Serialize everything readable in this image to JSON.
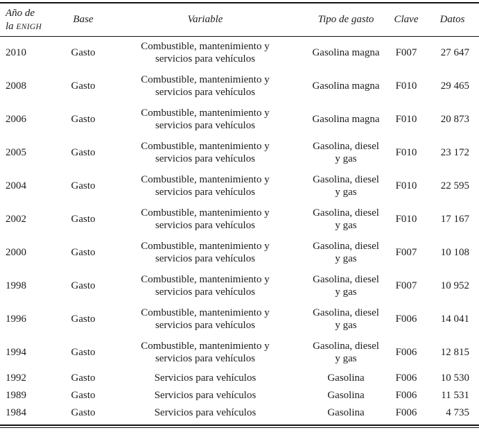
{
  "colors": {
    "text": "#1b1b1b",
    "rule": "#111111",
    "background": "#ffffff"
  },
  "table": {
    "header": {
      "year_line1": "Año de",
      "year_line2_prefix": "la ",
      "year_acronym": "ENIGH",
      "base": "Base",
      "variable": "Variable",
      "tipo": "Tipo de gasto",
      "clave": "Clave",
      "datos": "Datos"
    },
    "rows": [
      {
        "year": "2010",
        "base": "Gasto",
        "variable": "Combustible, mantenimiento y\nservicios para vehículos",
        "tipo": "Gasolina magna",
        "clave": "F007",
        "datos": "27 647"
      },
      {
        "year": "2008",
        "base": "Gasto",
        "variable": "Combustible, mantenimiento y\nservicios para vehículos",
        "tipo": "Gasolina magna",
        "clave": "F010",
        "datos": "29 465"
      },
      {
        "year": "2006",
        "base": "Gasto",
        "variable": "Combustible, mantenimiento y\nservicios para vehículos",
        "tipo": "Gasolina magna",
        "clave": "F010",
        "datos": "20 873"
      },
      {
        "year": "2005",
        "base": "Gasto",
        "variable": "Combustible, mantenimiento y\nservicios para vehículos",
        "tipo": "Gasolina, diesel\ny gas",
        "clave": "F010",
        "datos": "23 172"
      },
      {
        "year": "2004",
        "base": "Gasto",
        "variable": "Combustible, mantenimiento y\nservicios para vehículos",
        "tipo": "Gasolina, diesel\ny gas",
        "clave": "F010",
        "datos": "22 595"
      },
      {
        "year": "2002",
        "base": "Gasto",
        "variable": "Combustible, mantenimiento y\nservicios para vehículos",
        "tipo": "Gasolina, diesel\ny gas",
        "clave": "F010",
        "datos": "17 167"
      },
      {
        "year": "2000",
        "base": "Gasto",
        "variable": "Combustible, mantenimiento y\nservicios para vehículos",
        "tipo": "Gasolina, diesel\ny gas",
        "clave": "F007",
        "datos": "10 108"
      },
      {
        "year": "1998",
        "base": "Gasto",
        "variable": "Combustible, mantenimiento y\nservicios para vehículos",
        "tipo": "Gasolina, diesel\ny gas",
        "clave": "F007",
        "datos": "10 952"
      },
      {
        "year": "1996",
        "base": "Gasto",
        "variable": "Combustible, mantenimiento y\nservicios para vehículos",
        "tipo": "Gasolina, diesel\ny gas",
        "clave": "F006",
        "datos": "14 041"
      },
      {
        "year": "1994",
        "base": "Gasto",
        "variable": "Combustible, mantenimiento y\nservicios para vehículos",
        "tipo": "Gasolina, diesel\ny gas",
        "clave": "F006",
        "datos": "12 815"
      },
      {
        "year": "1992",
        "base": "Gasto",
        "variable": "Servicios para vehículos",
        "tipo": "Gasolina",
        "clave": "F006",
        "datos": "10 530"
      },
      {
        "year": "1989",
        "base": "Gasto",
        "variable": "Servicios para vehículos",
        "tipo": "Gasolina",
        "clave": "F006",
        "datos": "11 531"
      },
      {
        "year": "1984",
        "base": "Gasto",
        "variable": "Servicios para vehículos",
        "tipo": "Gasolina",
        "clave": "F006",
        "datos": "4 735"
      }
    ]
  }
}
